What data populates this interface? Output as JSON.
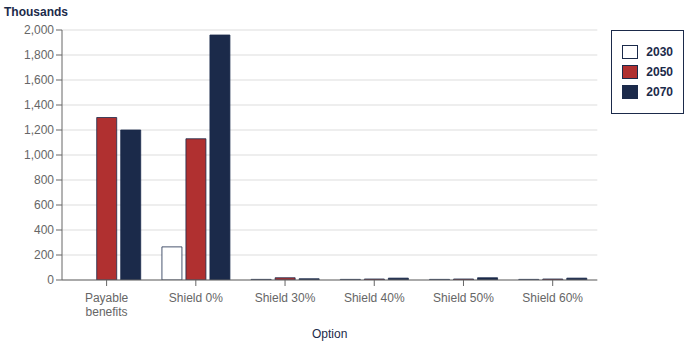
{
  "chart_data": {
    "type": "bar",
    "categories": [
      "Payable\nbenefits",
      "Shield 0%",
      "Shield 30%",
      "Shield 40%",
      "Shield 50%",
      "Shield 60%"
    ],
    "series": [
      {
        "name": "2030",
        "color": "#FFFFFF",
        "values": [
          0,
          265,
          5,
          5,
          5,
          5
        ]
      },
      {
        "name": "2050",
        "color": "#B03030",
        "values": [
          1300,
          1130,
          18,
          8,
          8,
          8
        ]
      },
      {
        "name": "2070",
        "color": "#1B2A4A",
        "values": [
          1200,
          1960,
          10,
          15,
          18,
          15
        ]
      }
    ],
    "xlabel": "Option",
    "ylabel": "Thousands",
    "ylim": [
      0,
      2000
    ],
    "yticks": [
      0,
      200,
      400,
      600,
      800,
      {
        "value": 1000,
        "label": "1,000"
      },
      {
        "value": 1200,
        "label": "1,200"
      },
      {
        "value": 1400,
        "label": "1,400"
      },
      {
        "value": 1600,
        "label": "1,600"
      },
      {
        "value": 1800,
        "label": "1,800"
      },
      {
        "value": 2000,
        "label": "2,000"
      }
    ],
    "grid": true,
    "legend": "right"
  }
}
